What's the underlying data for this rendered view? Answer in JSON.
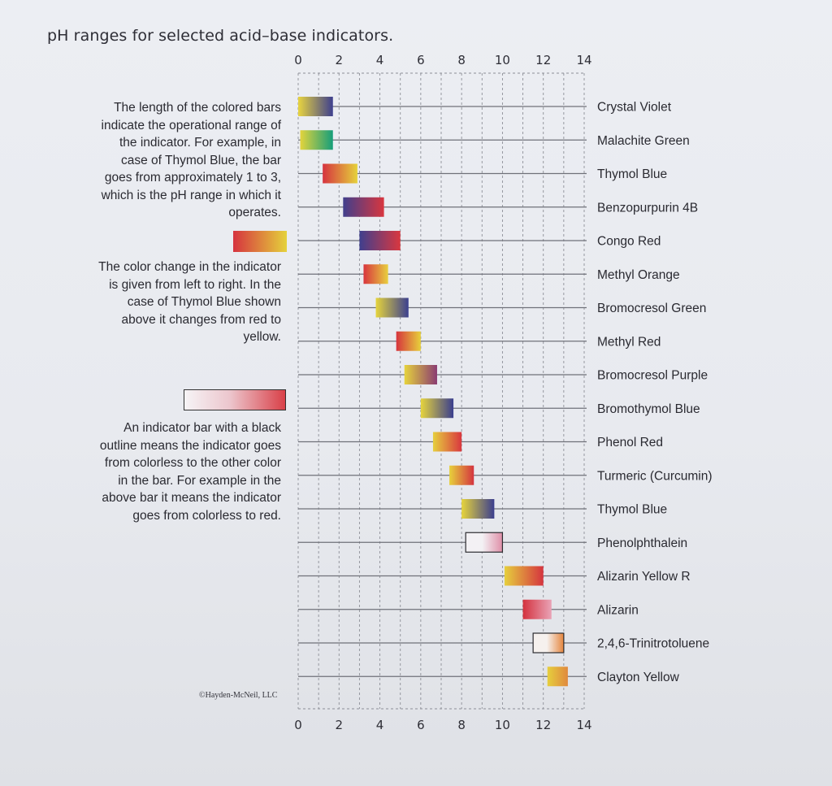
{
  "title": "pH ranges for selected acid–base indicators.",
  "notes": {
    "note1": "The length of the colored bars indicate the operational range of the indicator. For example, in case of Thymol Blue, the bar goes from approximately 1 to 3, which is the pH range in which it operates.",
    "note2": "The color change in the indicator is given from left to right. In the case of Thymol Blue shown above it changes from red to yellow.",
    "note3": "An indicator bar with a black outline means the indicator goes from colorless to the other color in the bar. For example in the above bar it means the indicator goes from colorless to red."
  },
  "credit": "©Hayden-McNeil, LLC",
  "chart_data": {
    "type": "bar",
    "title": "pH ranges for selected acid–base indicators.",
    "xlabel": "",
    "ylabel": "",
    "xlim": [
      0,
      14
    ],
    "x_ticks": [
      0,
      2,
      4,
      6,
      8,
      10,
      12,
      14
    ],
    "grid": true,
    "orientation": "horizontal-range",
    "indicators": [
      {
        "name": "Crystal Violet",
        "low": 0.0,
        "high": 1.7,
        "colors": [
          "#e8d43f",
          "#3d3f8e"
        ],
        "outline": false
      },
      {
        "name": "Malachite Green",
        "low": 0.1,
        "high": 1.7,
        "colors": [
          "#e3d43c",
          "#159e7a"
        ],
        "outline": false
      },
      {
        "name": "Thymol Blue",
        "low": 1.2,
        "high": 2.9,
        "colors": [
          "#d6333f",
          "#e5d23b"
        ],
        "outline": false
      },
      {
        "name": "Benzopurpurin 4B",
        "low": 2.2,
        "high": 4.2,
        "colors": [
          "#403f8c",
          "#d8363f"
        ],
        "outline": false
      },
      {
        "name": "Congo Red",
        "low": 3.0,
        "high": 5.0,
        "colors": [
          "#3f3f8e",
          "#d9373f"
        ],
        "outline": false
      },
      {
        "name": "Methyl Orange",
        "low": 3.2,
        "high": 4.4,
        "colors": [
          "#d8353d",
          "#e8cf3f"
        ],
        "outline": false
      },
      {
        "name": "Bromocresol Green",
        "low": 3.8,
        "high": 5.4,
        "colors": [
          "#e5d43c",
          "#3b3f8f"
        ],
        "outline": false
      },
      {
        "name": "Methyl Red",
        "low": 4.8,
        "high": 6.0,
        "colors": [
          "#d6343d",
          "#e7d03b"
        ],
        "outline": false
      },
      {
        "name": "Bromocresol Purple",
        "low": 5.2,
        "high": 6.8,
        "colors": [
          "#e6d33c",
          "#8a3b72"
        ],
        "outline": false
      },
      {
        "name": "Bromothymol Blue",
        "low": 6.0,
        "high": 7.6,
        "colors": [
          "#e6d43c",
          "#3a3e8e"
        ],
        "outline": false
      },
      {
        "name": "Phenol Red",
        "low": 6.6,
        "high": 8.0,
        "colors": [
          "#e6cf3d",
          "#d9373f"
        ],
        "outline": false
      },
      {
        "name": "Turmeric (Curcumin)",
        "low": 7.4,
        "high": 8.6,
        "colors": [
          "#e7d13c",
          "#d4343f"
        ],
        "outline": false
      },
      {
        "name": "Thymol Blue",
        "low": 8.0,
        "high": 9.6,
        "colors": [
          "#e6d43c",
          "#3b3e8e"
        ],
        "outline": false
      },
      {
        "name": "Phenolphthalein",
        "low": 8.2,
        "high": 10.0,
        "colors": [
          "#f3f1f4",
          "#df8fa8"
        ],
        "outline": true
      },
      {
        "name": "Alizarin Yellow R",
        "low": 10.1,
        "high": 12.0,
        "colors": [
          "#e6cf3d",
          "#d5343f"
        ],
        "outline": false
      },
      {
        "name": "Alizarin",
        "low": 11.0,
        "high": 12.4,
        "colors": [
          "#d4323e",
          "#e9a3b6"
        ],
        "outline": false
      },
      {
        "name": "2,4,6-Trinitrotoluene",
        "low": 11.5,
        "high": 13.0,
        "colors": [
          "#f6f1ee",
          "#e5853d"
        ],
        "outline": true
      },
      {
        "name": "Clayton Yellow",
        "low": 12.2,
        "high": 13.2,
        "colors": [
          "#e6cf3d",
          "#e0883e"
        ],
        "outline": false
      }
    ]
  }
}
